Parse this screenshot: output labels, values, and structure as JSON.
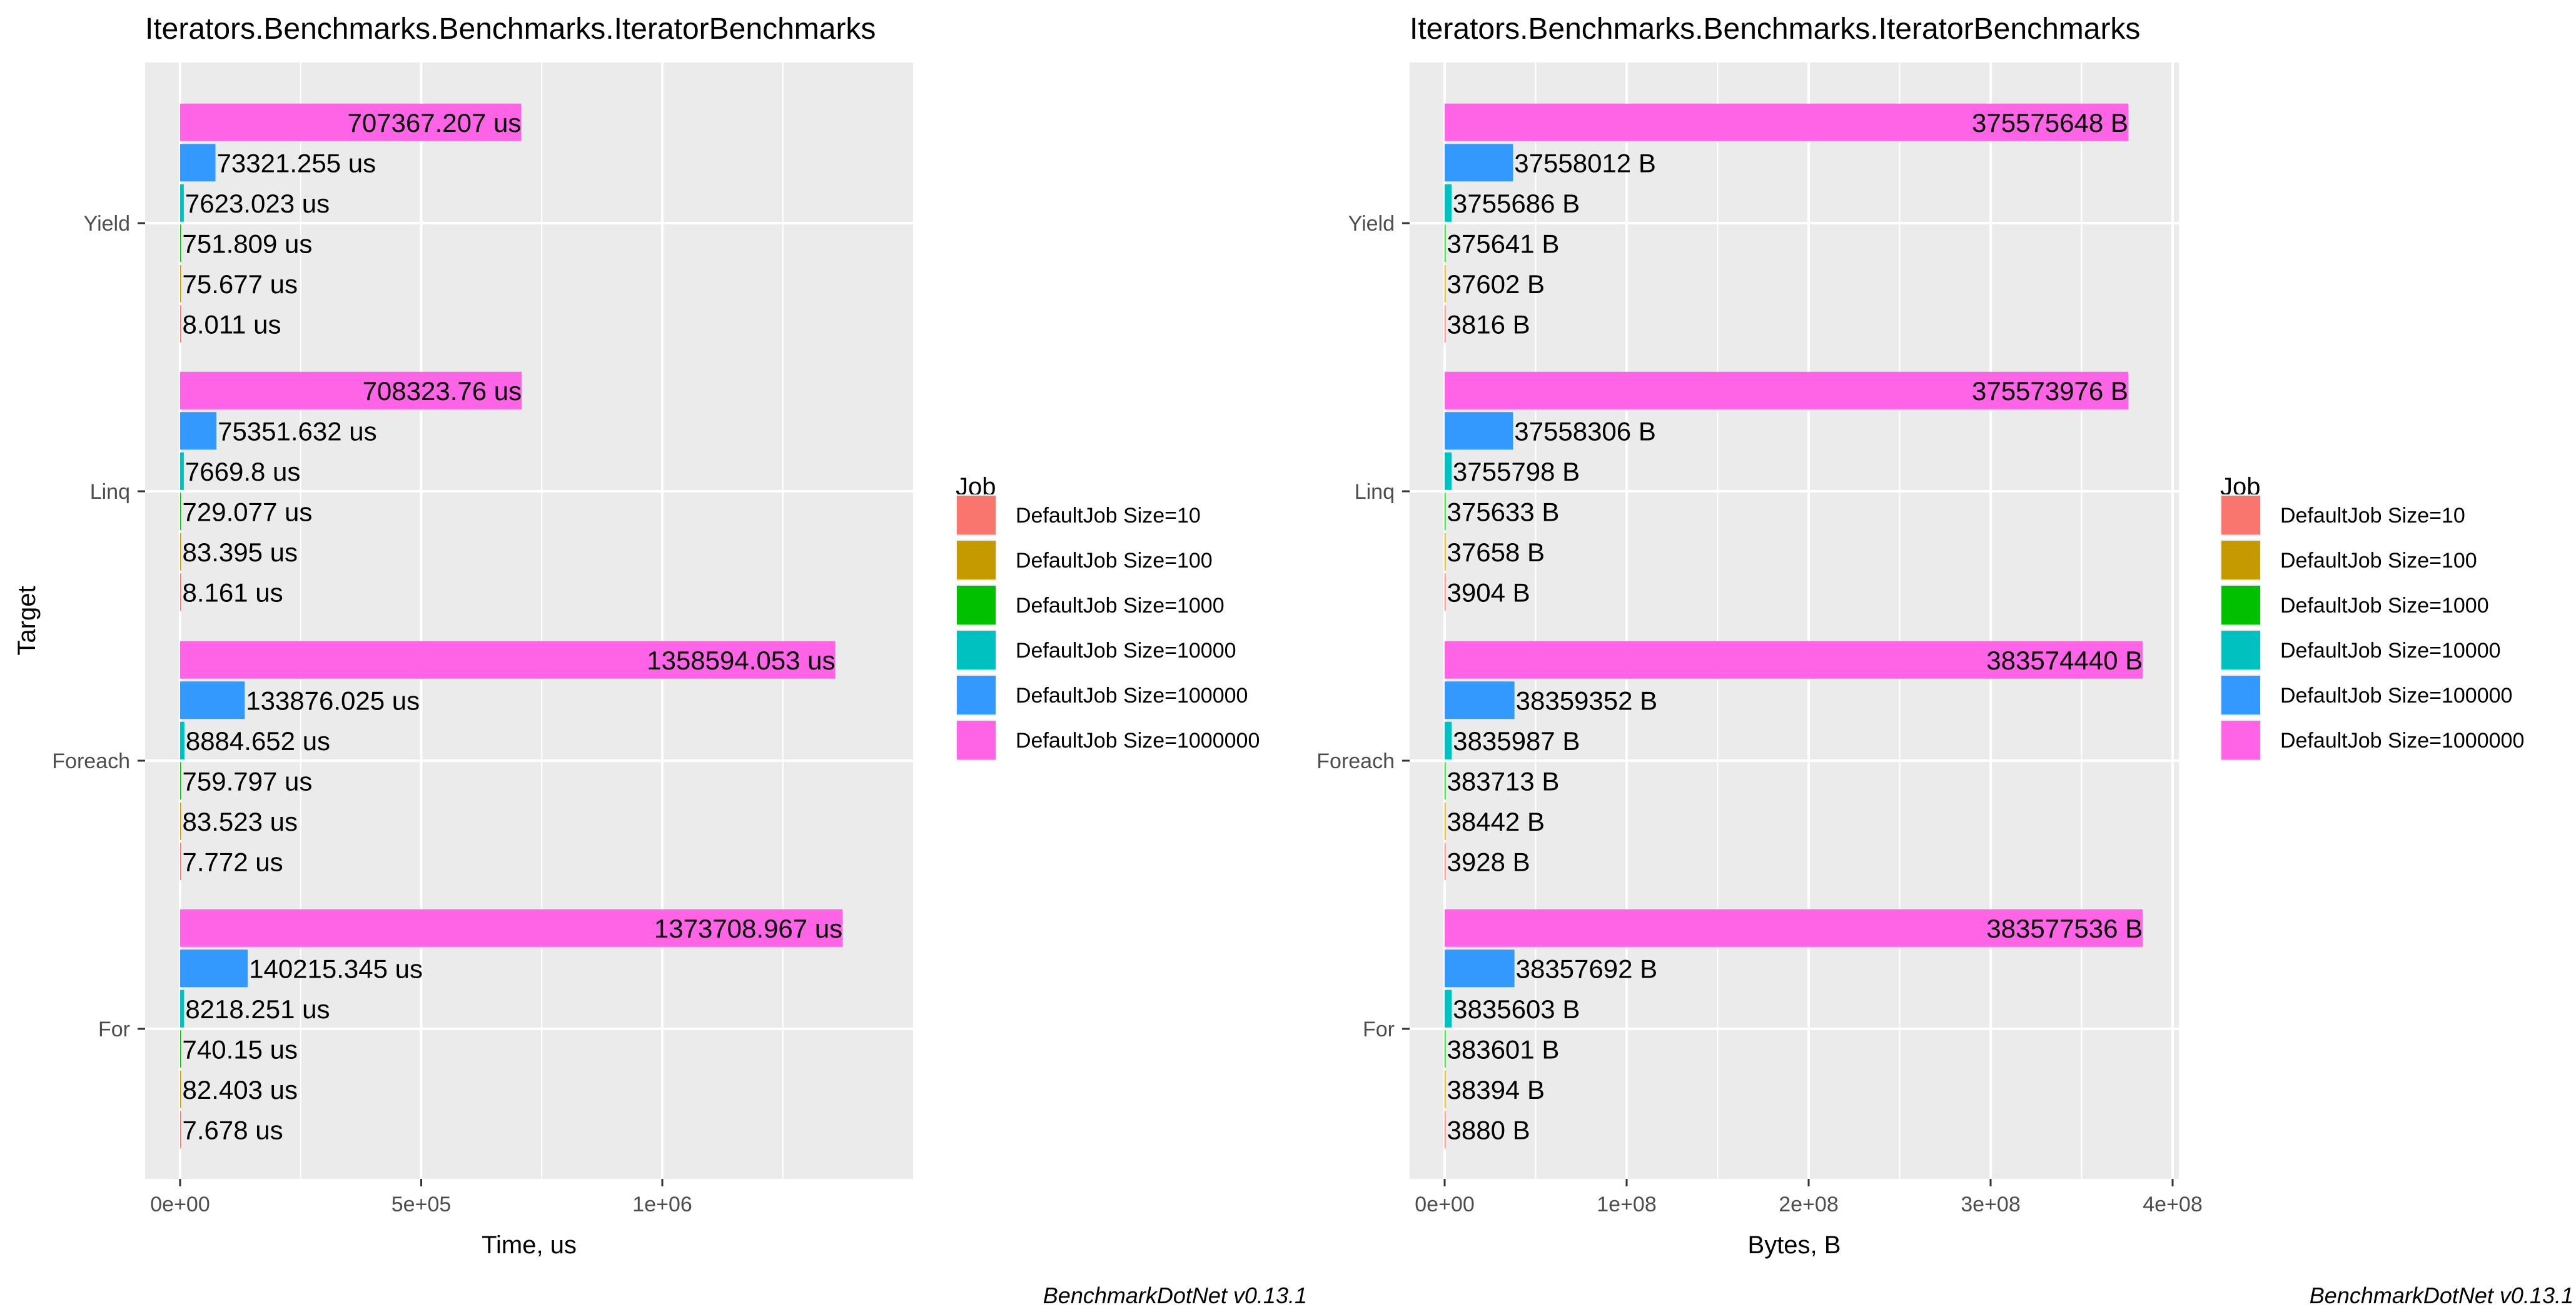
{
  "chart_data": [
    {
      "type": "bar",
      "orientation": "horizontal",
      "title": "Iterators.Benchmarks.Benchmarks.IteratorBenchmarks",
      "xlabel": "Time, us",
      "ylabel": "Target",
      "caption": "BenchmarkDotNet v0.13.1",
      "xlim": [
        0,
        1450000
      ],
      "x_ticks": [
        {
          "value": 0,
          "label": "0e+00"
        },
        {
          "value": 500000,
          "label": "5e+05"
        },
        {
          "value": 1000000,
          "label": "1e+06"
        }
      ],
      "grid": true,
      "legend_title": "Job",
      "legend_position": "right",
      "categories": [
        "Yield",
        "Linq",
        "Foreach",
        "For"
      ],
      "series": [
        {
          "name": "DefaultJob Size=10",
          "color": "#F8766D",
          "values": [
            8.011,
            8.161,
            7.772,
            7.678
          ],
          "labels": [
            "8.011 us",
            "8.161 us",
            "7.772 us",
            "7.678 us"
          ]
        },
        {
          "name": "DefaultJob Size=100",
          "color": "#C49A00",
          "values": [
            75.677,
            83.395,
            83.523,
            82.403
          ],
          "labels": [
            "75.677 us",
            "83.395 us",
            "83.523 us",
            "82.403 us"
          ]
        },
        {
          "name": "DefaultJob Size=1000",
          "color": "#00C000",
          "values": [
            751.809,
            729.077,
            759.797,
            740.15
          ],
          "labels": [
            "751.809 us",
            "729.077 us",
            "759.797 us",
            "740.15 us"
          ]
        },
        {
          "name": "DefaultJob Size=10000",
          "color": "#00C0C0",
          "values": [
            7623.023,
            7669.8,
            8884.652,
            8218.251
          ],
          "labels": [
            "7623.023 us",
            "7669.8 us",
            "8884.652 us",
            "8218.251 us"
          ]
        },
        {
          "name": "DefaultJob Size=100000",
          "color": "#3399FF",
          "values": [
            73321.255,
            75351.632,
            133876.025,
            140215.345
          ],
          "labels": [
            "73321.255 us",
            "75351.632 us",
            "133876.025 us",
            "140215.345 us"
          ]
        },
        {
          "name": "DefaultJob Size=1000000",
          "color": "#FF64E6",
          "values": [
            707367.207,
            708323.76,
            1358594.053,
            1373708.967
          ],
          "labels": [
            "707367.207 us",
            "708323.76 us",
            "1358594.053 us",
            "1373708.967 us"
          ]
        }
      ]
    },
    {
      "type": "bar",
      "orientation": "horizontal",
      "title": "Iterators.Benchmarks.Benchmarks.IteratorBenchmarks",
      "xlabel": "Bytes, B",
      "ylabel": "",
      "caption": "BenchmarkDotNet v0.13.1",
      "xlim": [
        0,
        400000000
      ],
      "x_ticks": [
        {
          "value": 0,
          "label": "0e+00"
        },
        {
          "value": 100000000,
          "label": "1e+08"
        },
        {
          "value": 200000000,
          "label": "2e+08"
        },
        {
          "value": 300000000,
          "label": "3e+08"
        },
        {
          "value": 400000000,
          "label": "4e+08"
        }
      ],
      "grid": true,
      "legend_title": "Job",
      "legend_position": "right",
      "categories": [
        "Yield",
        "Linq",
        "Foreach",
        "For"
      ],
      "series": [
        {
          "name": "DefaultJob Size=10",
          "color": "#F8766D",
          "values": [
            3816,
            3904,
            3928,
            3880
          ],
          "labels": [
            "3816 B",
            "3904 B",
            "3928 B",
            "3880 B"
          ]
        },
        {
          "name": "DefaultJob Size=100",
          "color": "#C49A00",
          "values": [
            37602,
            37658,
            38442,
            38394
          ],
          "labels": [
            "37602 B",
            "37658 B",
            "38442 B",
            "38394 B"
          ]
        },
        {
          "name": "DefaultJob Size=1000",
          "color": "#00C000",
          "values": [
            375641,
            375633,
            383713,
            383601
          ],
          "labels": [
            "375641 B",
            "375633 B",
            "383713 B",
            "383601 B"
          ]
        },
        {
          "name": "DefaultJob Size=10000",
          "color": "#00C0C0",
          "values": [
            3755686,
            3755798,
            3835987,
            3835603
          ],
          "labels": [
            "3755686 B",
            "3755798 B",
            "3835987 B",
            "3835603 B"
          ]
        },
        {
          "name": "DefaultJob Size=100000",
          "color": "#3399FF",
          "values": [
            37558012,
            37558306,
            38359352,
            38357692
          ],
          "labels": [
            "37558012 B",
            "37558306 B",
            "38359352 B",
            "38357692 B"
          ]
        },
        {
          "name": "DefaultJob Size=1000000",
          "color": "#FF64E6",
          "values": [
            375575648,
            375573976,
            383574440,
            383577536
          ],
          "labels": [
            "375575648 B",
            "375573976 B",
            "383574440 B",
            "383577536 B"
          ]
        }
      ]
    }
  ]
}
